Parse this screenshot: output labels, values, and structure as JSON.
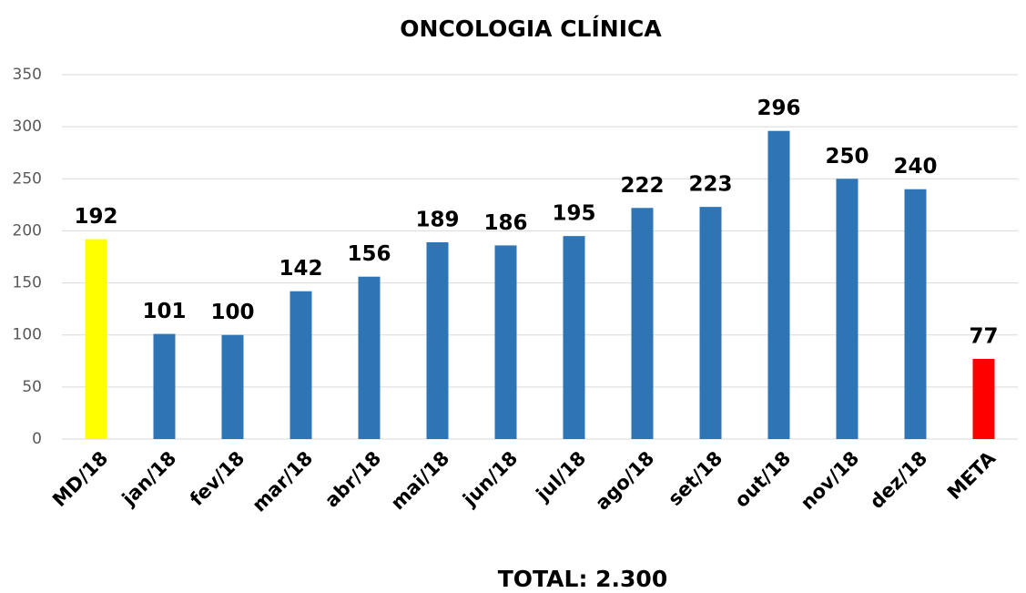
{
  "chart_data": {
    "type": "bar",
    "title": "ONCOLOGIA CLÍNICA",
    "categories": [
      "MD/18",
      "jan/18",
      "fev/18",
      "mar/18",
      "abr/18",
      "mai/18",
      "jun/18",
      "jul/18",
      "ago/18",
      "set/18",
      "out/18",
      "nov/18",
      "dez/18",
      "META"
    ],
    "values": [
      192,
      101,
      100,
      142,
      156,
      189,
      186,
      195,
      222,
      223,
      296,
      250,
      240,
      77
    ],
    "colors": [
      "#ffff00",
      "#2e75b6",
      "#2e75b6",
      "#2e75b6",
      "#2e75b6",
      "#2e75b6",
      "#2e75b6",
      "#2e75b6",
      "#2e75b6",
      "#2e75b6",
      "#2e75b6",
      "#2e75b6",
      "#2e75b6",
      "#ff0000"
    ],
    "ylim": [
      0,
      350
    ],
    "yticks": [
      0,
      50,
      100,
      150,
      200,
      250,
      300,
      350
    ],
    "grid": true,
    "annotation": "TOTAL: 2.300"
  }
}
